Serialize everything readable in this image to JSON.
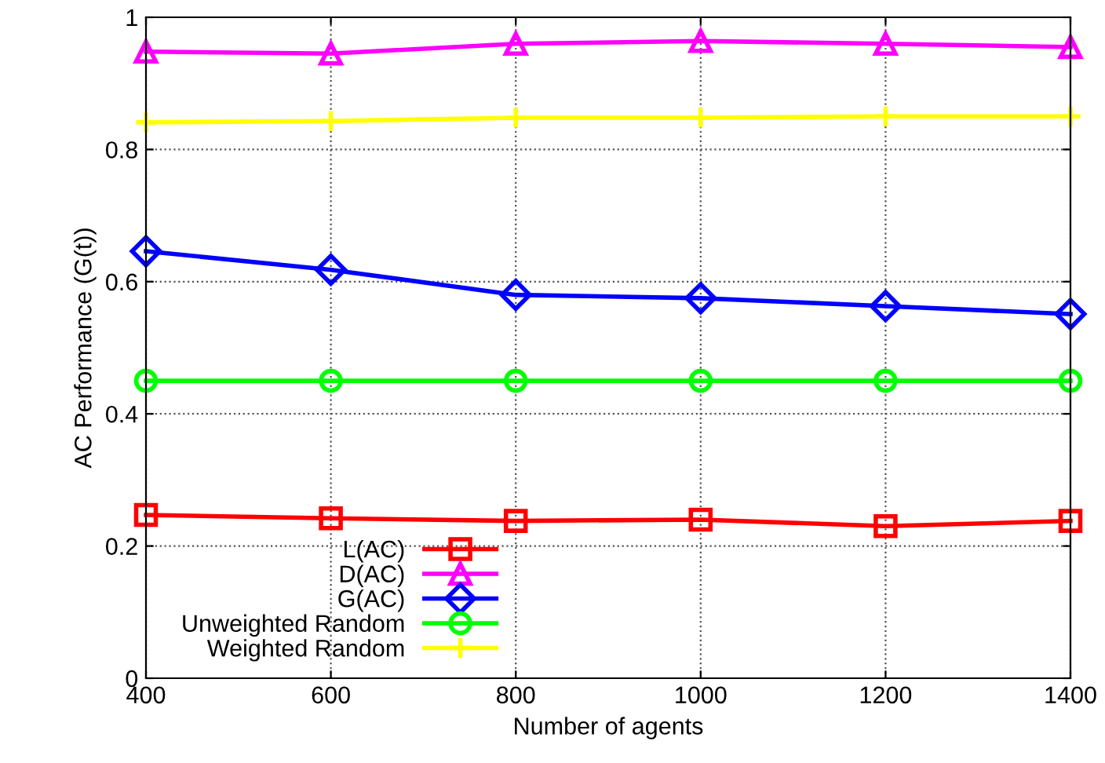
{
  "chart_data": {
    "type": "line",
    "xlabel": "Number of agents",
    "ylabel": "AC Performance (G(t))",
    "x": [
      400,
      600,
      800,
      1000,
      1200,
      1400
    ],
    "xlim": [
      400,
      1400
    ],
    "xticks": [
      400,
      600,
      800,
      1000,
      1200,
      1400
    ],
    "ylim": [
      0,
      1
    ],
    "yticks": [
      0,
      0.2,
      0.4,
      0.6,
      0.8,
      1
    ],
    "grid": true,
    "legend": "bottom left",
    "series": [
      {
        "name": "L(AC)",
        "color": "#ff0000",
        "marker": "square",
        "values": [
          0.247,
          0.242,
          0.238,
          0.24,
          0.23,
          0.238
        ]
      },
      {
        "name": "D(AC)",
        "color": "#ff00ff",
        "marker": "triangle",
        "values": [
          0.948,
          0.945,
          0.96,
          0.964,
          0.96,
          0.955
        ]
      },
      {
        "name": "G(AC)",
        "color": "#0000ff",
        "marker": "diamond",
        "values": [
          0.646,
          0.618,
          0.58,
          0.575,
          0.563,
          0.551
        ]
      },
      {
        "name": "Unweighted Random",
        "color": "#00ff00",
        "marker": "circle",
        "values": [
          0.45,
          0.45,
          0.45,
          0.45,
          0.45,
          0.45
        ]
      },
      {
        "name": "Weighted Random",
        "color": "#ffff00",
        "marker": "cross",
        "values": [
          0.841,
          0.843,
          0.848,
          0.848,
          0.85,
          0.85
        ]
      }
    ]
  }
}
